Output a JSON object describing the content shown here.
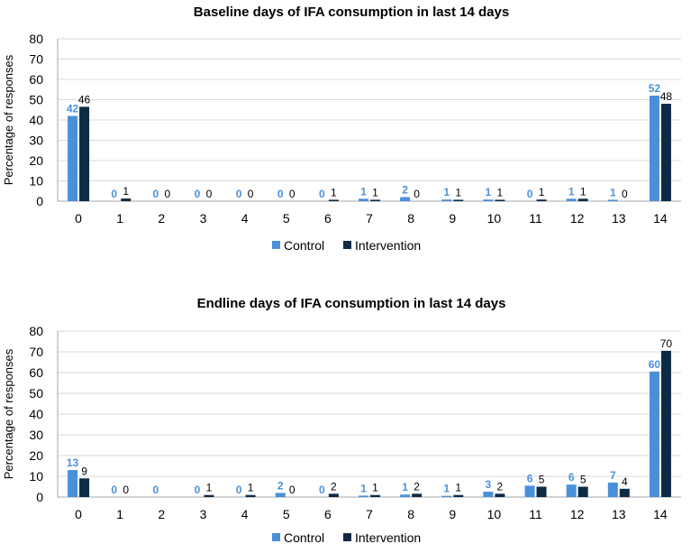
{
  "colors": {
    "control": "#4a90d9",
    "intervention": "#0d2b45",
    "grid": "#d9d9d9",
    "axis": "#a6a6a6"
  },
  "chart_data": [
    {
      "type": "bar",
      "title": "Baseline days of IFA consumption in last 14 days",
      "xlabel": "",
      "ylabel": "Percentage of responses",
      "ylim": [
        0,
        80
      ],
      "yticks": [
        "0",
        "10",
        "20",
        "30",
        "40",
        "50",
        "60",
        "70",
        "80"
      ],
      "categories": [
        "0",
        "1",
        "2",
        "3",
        "4",
        "5",
        "6",
        "7",
        "8",
        "9",
        "10",
        "11",
        "12",
        "13",
        "14"
      ],
      "series": [
        {
          "name": "Control",
          "values": [
            42,
            0,
            0,
            0,
            0,
            0,
            0,
            1.2,
            2,
            0.8,
            0.8,
            0,
            1.2,
            0.7,
            52
          ],
          "labels": [
            "42",
            "0",
            "0",
            "0",
            "0",
            "0",
            "0",
            "1",
            "2",
            "1",
            "1",
            "0",
            "1",
            "1",
            "52"
          ]
        },
        {
          "name": "Intervention",
          "values": [
            46.5,
            1.3,
            0,
            0,
            0,
            0,
            0.7,
            0.7,
            0,
            0.7,
            0.7,
            0.8,
            1.2,
            0,
            48
          ],
          "labels": [
            "46",
            "1",
            "0",
            "0",
            "0",
            "0",
            "1",
            "1",
            "0",
            "1",
            "1",
            "1",
            "1",
            "0",
            "48"
          ]
        }
      ],
      "grid": true,
      "legend": "bottom"
    },
    {
      "type": "bar",
      "title": "Endline days of IFA consumption in last 14 days",
      "xlabel": "",
      "ylabel": "Percentage of responses",
      "ylim": [
        0,
        80
      ],
      "yticks": [
        "0",
        "10",
        "20",
        "30",
        "40",
        "50",
        "60",
        "70",
        "80"
      ],
      "categories": [
        "0",
        "1",
        "2",
        "3",
        "4",
        "5",
        "6",
        "7",
        "8",
        "9",
        "10",
        "11",
        "12",
        "13",
        "14"
      ],
      "series": [
        {
          "name": "Control",
          "values": [
            13,
            0,
            0,
            0,
            0,
            2,
            0,
            0.7,
            1.2,
            0.6,
            2.6,
            5.5,
            6,
            7,
            60.5
          ],
          "labels": [
            "13",
            "0",
            "0",
            "0",
            "0",
            "2",
            "0",
            "1",
            "1",
            "1",
            "3",
            "6",
            "6",
            "7",
            "60"
          ]
        },
        {
          "name": "Intervention",
          "values": [
            9,
            0,
            null,
            1,
            1,
            0,
            1.6,
            1,
            1.6,
            1,
            1.6,
            5,
            5,
            4,
            70.5
          ],
          "labels": [
            "9",
            "0",
            "",
            "1",
            "1",
            "0",
            "2",
            "1",
            "2",
            "1",
            "2",
            "5",
            "5",
            "4",
            "70"
          ]
        }
      ],
      "grid": true,
      "legend": "bottom"
    }
  ]
}
